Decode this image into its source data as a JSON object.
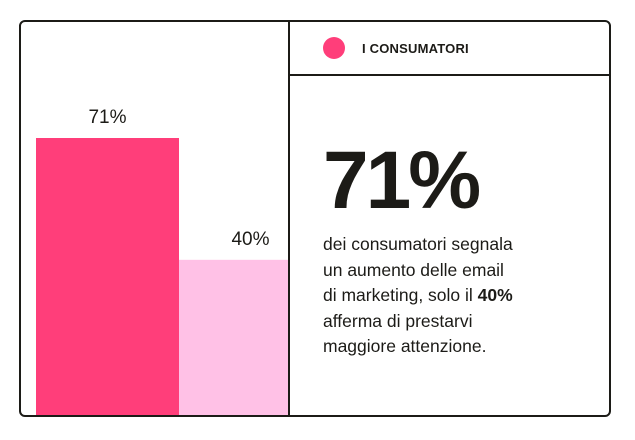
{
  "header": {
    "label": "I CONSUMATORI"
  },
  "stat": {
    "value": "71%",
    "description_lines": [
      "dei consumatori segnala",
      "un aumento delle email",
      "di marketing, solo il "
    ],
    "highlight": "40%",
    "description_tail_lines": [
      "afferma di prestarvi",
      "maggiore attenzione."
    ]
  },
  "colors": {
    "accent": "#ff3e7a",
    "accent_light": "#ffc1e6",
    "ink": "#1c1b17"
  },
  "chart_data": {
    "type": "bar",
    "categories": [
      "",
      ""
    ],
    "values": [
      71,
      40
    ],
    "data_labels": [
      "71%",
      "40%"
    ],
    "ylim": [
      0,
      100
    ],
    "grid": false,
    "legend": "none"
  }
}
